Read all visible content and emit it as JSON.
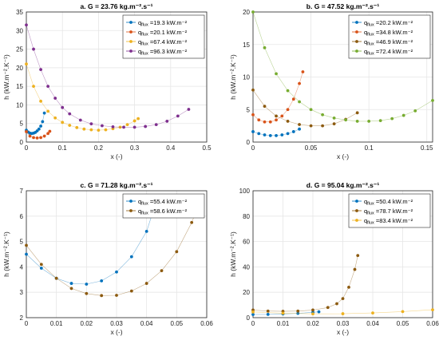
{
  "colors": {
    "blue": "#0072BD",
    "orange": "#D95319",
    "yellow": "#EDB120",
    "purple": "#7E2F8E",
    "green": "#77AC30",
    "brown": "#8C5A0F",
    "grid": "#e6e6e6"
  },
  "chart_data": [
    {
      "type": "scatter",
      "title": "a. G = 23.76 kg.m⁻².s⁻¹",
      "xlabel": "x (-)",
      "ylabel": "h (kW.m⁻².K⁻¹)",
      "xlim": [
        0,
        0.5
      ],
      "ylim": [
        0,
        35
      ],
      "xticks": [
        "0",
        "0.1",
        "0.2",
        "0.3",
        "0.4",
        "0.5"
      ],
      "yticks": [
        "0",
        "5",
        "10",
        "15",
        "20",
        "25",
        "30",
        "35"
      ],
      "grid": true,
      "legend_position": "top-right",
      "series": [
        {
          "name": "q",
          "sub": "flux",
          "label_rest": " =19.3 kW.m⁻²",
          "color": "blue",
          "x": [
            0.0,
            0.005,
            0.01,
            0.015,
            0.02,
            0.025,
            0.03,
            0.035,
            0.04,
            0.045,
            0.05
          ],
          "y": [
            3.2,
            2.7,
            2.4,
            2.3,
            2.4,
            2.6,
            3.0,
            3.5,
            4.3,
            5.5,
            7.8
          ]
        },
        {
          "name": "q",
          "sub": "flux",
          "label_rest": " =20.1 kW.m⁻²",
          "color": "orange",
          "x": [
            0.0,
            0.01,
            0.02,
            0.03,
            0.04,
            0.05,
            0.06,
            0.065
          ],
          "y": [
            2.8,
            1.6,
            1.2,
            1.1,
            1.2,
            1.6,
            2.3,
            2.9
          ]
        },
        {
          "name": "q",
          "sub": "flux",
          "label_rest": " =67.4 kW.m⁻²",
          "color": "yellow",
          "x": [
            0.0,
            0.02,
            0.04,
            0.06,
            0.08,
            0.1,
            0.12,
            0.14,
            0.16,
            0.18,
            0.2,
            0.22,
            0.24,
            0.26,
            0.28,
            0.3,
            0.31
          ],
          "y": [
            21.0,
            15.0,
            11.0,
            8.3,
            6.5,
            5.3,
            4.5,
            3.9,
            3.5,
            3.3,
            3.2,
            3.3,
            3.6,
            4.0,
            4.7,
            5.7,
            6.3
          ]
        },
        {
          "name": "q",
          "sub": "flux",
          "label_rest": " =96.3 kW.m⁻²",
          "color": "purple",
          "x": [
            0.0,
            0.02,
            0.04,
            0.06,
            0.08,
            0.1,
            0.12,
            0.15,
            0.18,
            0.21,
            0.24,
            0.27,
            0.3,
            0.33,
            0.36,
            0.39,
            0.42,
            0.45
          ],
          "y": [
            31.5,
            25.0,
            19.5,
            15.0,
            11.8,
            9.3,
            7.6,
            5.9,
            4.9,
            4.4,
            4.1,
            4.0,
            4.0,
            4.2,
            4.7,
            5.6,
            7.0,
            8.8
          ]
        }
      ]
    },
    {
      "type": "scatter",
      "title": "b. G = 47.52 kg.m⁻².s⁻¹",
      "xlabel": "x (-)",
      "ylabel": "h (kW.m⁻².K⁻¹)",
      "xlim": [
        0,
        0.155
      ],
      "ylim": [
        0,
        20
      ],
      "xticks": [
        "0",
        "0.05",
        "0.1",
        "0.15"
      ],
      "xtickvals": [
        0,
        0.05,
        0.1,
        0.15
      ],
      "yticks": [
        "0",
        "5",
        "10",
        "15",
        "20"
      ],
      "grid": true,
      "legend_position": "top-right",
      "series": [
        {
          "name": "q",
          "sub": "flux",
          "label_rest": " =20.2 kW.m⁻²",
          "color": "blue",
          "x": [
            0.0,
            0.005,
            0.01,
            0.015,
            0.02,
            0.025,
            0.03,
            0.035,
            0.04
          ],
          "y": [
            1.6,
            1.3,
            1.1,
            1.0,
            1.0,
            1.1,
            1.3,
            1.6,
            2.0
          ]
        },
        {
          "name": "q",
          "sub": "flux",
          "label_rest": " =34.8 kW.m⁻²",
          "color": "orange",
          "x": [
            0.0,
            0.005,
            0.01,
            0.015,
            0.02,
            0.025,
            0.03,
            0.035,
            0.04,
            0.043
          ],
          "y": [
            4.2,
            3.4,
            3.1,
            3.1,
            3.4,
            4.0,
            5.0,
            6.6,
            9.0,
            10.8
          ]
        },
        {
          "name": "q",
          "sub": "flux",
          "label_rest": " =46.9 kW.m⁻²",
          "color": "brown",
          "x": [
            0.0,
            0.01,
            0.02,
            0.03,
            0.04,
            0.05,
            0.06,
            0.07,
            0.08,
            0.09
          ],
          "y": [
            8.0,
            5.5,
            4.0,
            3.2,
            2.7,
            2.5,
            2.5,
            2.8,
            3.5,
            4.5
          ]
        },
        {
          "name": "q",
          "sub": "flux",
          "label_rest": " =72.4 kW.m⁻²",
          "color": "green",
          "x": [
            0.0,
            0.01,
            0.02,
            0.03,
            0.04,
            0.05,
            0.06,
            0.07,
            0.08,
            0.09,
            0.1,
            0.11,
            0.12,
            0.13,
            0.14,
            0.155
          ],
          "y": [
            20.0,
            14.5,
            10.5,
            7.9,
            6.2,
            5.0,
            4.2,
            3.7,
            3.4,
            3.2,
            3.2,
            3.3,
            3.6,
            4.1,
            4.8,
            6.4
          ]
        }
      ]
    },
    {
      "type": "scatter",
      "title": "c. G = 71.28 kg.m⁻².s⁻¹",
      "xlabel": "x (-)",
      "ylabel": "h (kW.m⁻².K⁻¹)",
      "xlim": [
        0,
        0.06
      ],
      "ylim": [
        2,
        7
      ],
      "xticks": [
        "0",
        "0.01",
        "0.02",
        "0.03",
        "0.04",
        "0.05",
        "0.06"
      ],
      "yticks": [
        "2",
        "3",
        "4",
        "5",
        "6",
        "7"
      ],
      "grid": true,
      "legend_position": "top-right",
      "series": [
        {
          "name": "q",
          "sub": "flux",
          "label_rest": " =55.4 kW.m⁻²",
          "color": "blue",
          "x": [
            0.0,
            0.005,
            0.01,
            0.015,
            0.02,
            0.025,
            0.03,
            0.035,
            0.04,
            0.043
          ],
          "y": [
            4.5,
            3.95,
            3.55,
            3.35,
            3.32,
            3.45,
            3.8,
            4.4,
            5.4,
            6.5
          ]
        },
        {
          "name": "q",
          "sub": "flux",
          "label_rest": " =58.6 kW.m⁻²",
          "color": "brown",
          "x": [
            0.0,
            0.005,
            0.01,
            0.015,
            0.02,
            0.025,
            0.03,
            0.035,
            0.04,
            0.045,
            0.05,
            0.055,
            0.056
          ],
          "y": [
            4.85,
            4.1,
            3.55,
            3.15,
            2.95,
            2.87,
            2.88,
            3.05,
            3.35,
            3.85,
            4.6,
            5.75,
            6.05
          ]
        }
      ]
    },
    {
      "type": "scatter",
      "title": "d. G = 95.04 kg.m⁻².s⁻¹",
      "xlabel": "x (-)",
      "ylabel": "h (kW.m⁻².K⁻¹)",
      "xlim": [
        0,
        0.06
      ],
      "ylim": [
        0,
        100
      ],
      "xticks": [
        "0",
        "0.01",
        "0.02",
        "0.03",
        "0.04",
        "0.05",
        "0.06"
      ],
      "yticks": [
        "0",
        "20",
        "40",
        "60",
        "80",
        "100"
      ],
      "grid": true,
      "legend_position": "top-right",
      "series": [
        {
          "name": "q",
          "sub": "flux",
          "label_rest": " =50.4 kW.m⁻²",
          "color": "blue",
          "x": [
            0.0,
            0.005,
            0.01,
            0.015,
            0.02,
            0.022
          ],
          "y": [
            2.5,
            2.6,
            2.9,
            3.4,
            4.2,
            4.6
          ]
        },
        {
          "name": "q",
          "sub": "flux",
          "label_rest": " =78.7 kW.m⁻²",
          "color": "brown",
          "x": [
            0.0,
            0.005,
            0.01,
            0.015,
            0.02,
            0.025,
            0.028,
            0.03,
            0.032,
            0.034,
            0.035
          ],
          "y": [
            6.0,
            5.2,
            5.0,
            5.2,
            6.0,
            8.0,
            11.0,
            15.0,
            24.0,
            38.0,
            49.0
          ]
        },
        {
          "name": "q",
          "sub": "flux",
          "label_rest": " =83.4 kW.m⁻²",
          "color": "yellow",
          "x": [
            0.0,
            0.01,
            0.02,
            0.03,
            0.04,
            0.05,
            0.06
          ],
          "y": [
            4.5,
            3.5,
            3.0,
            3.1,
            3.7,
            4.8,
            6.2
          ]
        }
      ]
    }
  ]
}
